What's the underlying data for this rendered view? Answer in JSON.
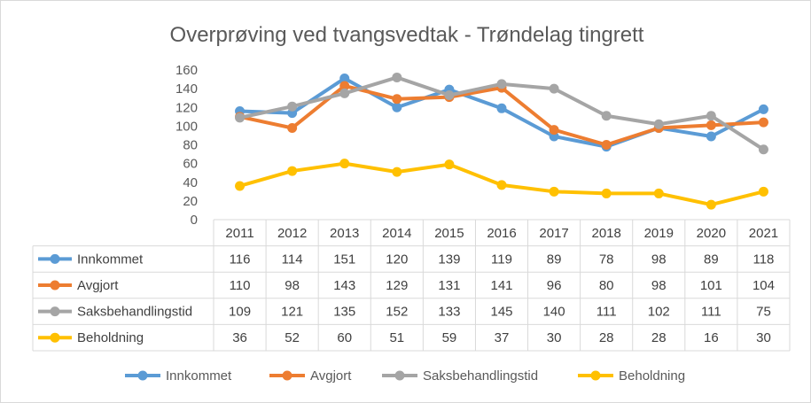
{
  "chart_data": {
    "type": "line",
    "title": "Overprøving ved tvangsvedtak - Trøndelag tingrett",
    "categories": [
      "2011",
      "2012",
      "2013",
      "2014",
      "2015",
      "2016",
      "2017",
      "2018",
      "2019",
      "2020",
      "2021"
    ],
    "ylim": [
      0,
      160
    ],
    "yticks": [
      "0",
      "20",
      "40",
      "60",
      "80",
      "100",
      "120",
      "140",
      "160"
    ],
    "grid": false,
    "legend": "bottom",
    "data_table": true,
    "series": [
      {
        "name": "Innkommet",
        "color": "#5b9bd5",
        "values": [
          116,
          114,
          151,
          120,
          139,
          119,
          89,
          78,
          98,
          89,
          118
        ]
      },
      {
        "name": "Avgjort",
        "color": "#ed7d31",
        "values": [
          110,
          98,
          143,
          129,
          131,
          141,
          96,
          80,
          98,
          101,
          104
        ]
      },
      {
        "name": "Saksbehandlingstid",
        "color": "#a5a5a5",
        "values": [
          109,
          121,
          135,
          152,
          133,
          145,
          140,
          111,
          102,
          111,
          75
        ]
      },
      {
        "name": "Beholdning",
        "color": "#ffc000",
        "values": [
          36,
          52,
          60,
          51,
          59,
          37,
          30,
          28,
          28,
          16,
          30
        ]
      }
    ]
  }
}
